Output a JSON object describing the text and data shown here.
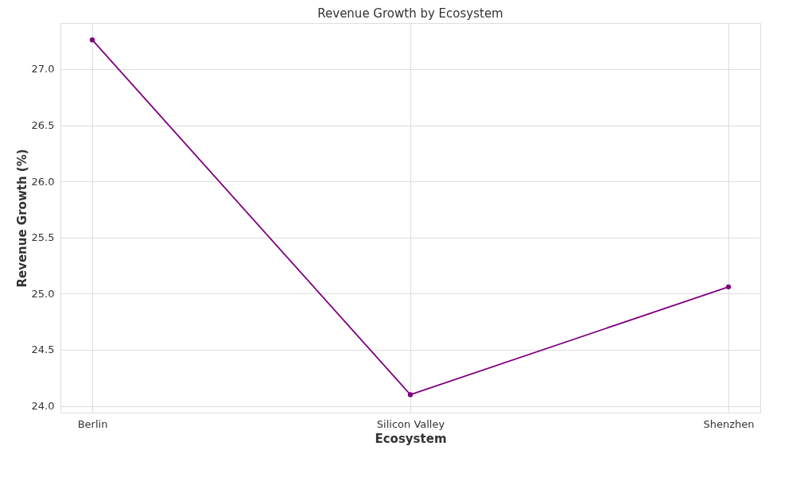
{
  "chart_data": {
    "type": "line",
    "title": "Revenue Growth by Ecosystem",
    "xlabel": "Ecosystem",
    "ylabel": "Revenue Growth (%)",
    "categories": [
      "Berlin",
      "Silicon Valley",
      "Shenzhen"
    ],
    "series": [
      {
        "color": "#800080",
        "values": [
          27.26,
          24.1,
          25.06
        ]
      }
    ],
    "ylim": [
      23.94,
      27.41
    ],
    "yticks": [
      {
        "value": 24.0,
        "label": "24.0"
      },
      {
        "value": 24.5,
        "label": "24.5"
      },
      {
        "value": 25.0,
        "label": "25.0"
      },
      {
        "value": 25.5,
        "label": "25.5"
      },
      {
        "value": 26.0,
        "label": "26.0"
      },
      {
        "value": 26.5,
        "label": "26.5"
      },
      {
        "value": 27.0,
        "label": "27.0"
      }
    ],
    "grid": true,
    "marker": "circle",
    "line_style": "solid"
  }
}
